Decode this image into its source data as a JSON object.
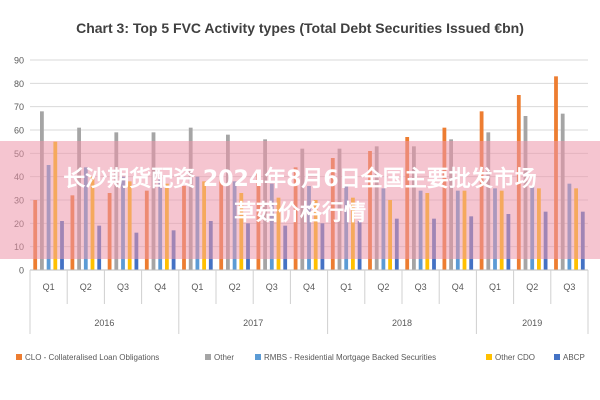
{
  "chart_data": {
    "type": "bar",
    "title": "Chart 3: Top 5 FVC Activity types (Total Debt Securities Issued €bn)",
    "xlabel": "",
    "ylabel": "",
    "ylim": [
      0,
      90
    ],
    "yticks": [
      0,
      10,
      20,
      30,
      40,
      50,
      60,
      70,
      80,
      90
    ],
    "grid": true,
    "legend_position": "bottom",
    "groups": [
      {
        "label": "2016",
        "quarters": [
          "Q1",
          "Q2",
          "Q3",
          "Q4"
        ]
      },
      {
        "label": "2017",
        "quarters": [
          "Q1",
          "Q2",
          "Q3",
          "Q4"
        ]
      },
      {
        "label": "2018",
        "quarters": [
          "Q1",
          "Q2",
          "Q3",
          "Q4"
        ]
      },
      {
        "label": "2019",
        "quarters": [
          "Q1",
          "Q2",
          "Q3"
        ]
      }
    ],
    "categories": [
      "Q1",
      "Q2",
      "Q3",
      "Q4",
      "Q1",
      "Q2",
      "Q3",
      "Q4",
      "Q1",
      "Q2",
      "Q3",
      "Q4",
      "Q1",
      "Q2",
      "Q3"
    ],
    "series": [
      {
        "name": "CLO - Collateralised Loan Obligations",
        "color": "#ED7D31",
        "values": [
          30,
          32,
          33,
          34,
          36,
          40,
          42,
          44,
          48,
          51,
          57,
          61,
          68,
          75,
          83
        ]
      },
      {
        "name": "Other",
        "color": "#A5A5A5",
        "values": [
          68,
          61,
          59,
          59,
          61,
          58,
          56,
          52,
          52,
          53,
          53,
          56,
          59,
          66,
          67
        ]
      },
      {
        "name": "RMBS - Residential Mortgage Backed Securities",
        "color": "#5B9BD5",
        "values": [
          45,
          44,
          40,
          39,
          40,
          38,
          37,
          36,
          36,
          35,
          34,
          34,
          35,
          36,
          37
        ]
      },
      {
        "name": "Other CDO",
        "color": "#FFC000",
        "values": [
          55,
          40,
          38,
          37,
          38,
          33,
          31,
          30,
          31,
          30,
          33,
          34,
          34,
          35,
          35
        ]
      },
      {
        "name": "ABCP",
        "color": "#4472C4",
        "values": [
          21,
          19,
          16,
          17,
          21,
          20,
          19,
          20,
          21,
          22,
          22,
          23,
          24,
          25,
          25
        ]
      }
    ]
  },
  "overlay": {
    "line1": "长沙期货配资 2024年8月6日全国主要批发市场",
    "line2": "草菇价格行情"
  }
}
